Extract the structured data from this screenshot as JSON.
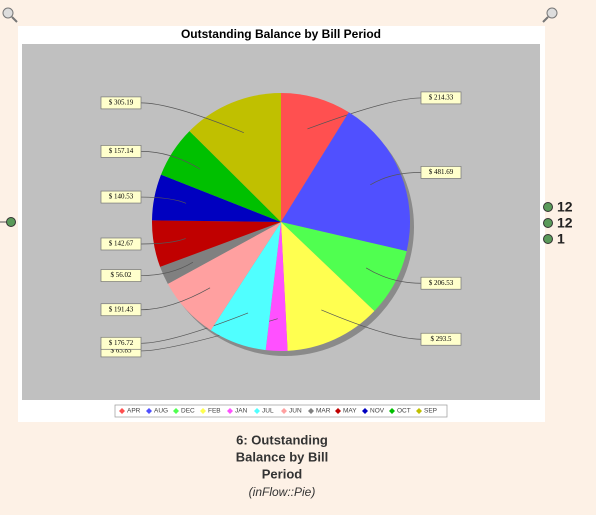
{
  "chart_data": {
    "type": "pie",
    "title": "Outstanding Balance by Bill Period",
    "categories": [
      "APR",
      "AUG",
      "DEC",
      "FEB",
      "JAN",
      "JUL",
      "JUN",
      "MAR",
      "MAY",
      "NOV",
      "OCT",
      "SEP"
    ],
    "values": [
      214.33,
      481.69,
      206.53,
      293.5,
      65.85,
      176.72,
      191.43,
      56.02,
      142.67,
      140.53,
      157.14,
      305.19
    ],
    "value_labels": [
      "$ 214.33",
      "$ 481.69",
      "$ 206.53",
      "$ 293.5",
      "$ 65.85",
      "$ 176.72",
      "$ 191.43",
      "$ 56.02",
      "$ 142.67",
      "$ 140.53",
      "$ 157.14",
      "$ 305.19"
    ],
    "colors": [
      "#ff5050",
      "#5050ff",
      "#50ff50",
      "#ffff50",
      "#ff50ff",
      "#50ffff",
      "#ffa0a0",
      "#808080",
      "#c00000",
      "#0000c0",
      "#00c000",
      "#c0c000"
    ],
    "legend": "bottom"
  },
  "node": {
    "caption": [
      "6: Outstanding",
      "Balance by Bill",
      "Period"
    ],
    "subtitle": "(inFlow::Pie)",
    "ports": [
      "12",
      "12",
      "1"
    ]
  }
}
